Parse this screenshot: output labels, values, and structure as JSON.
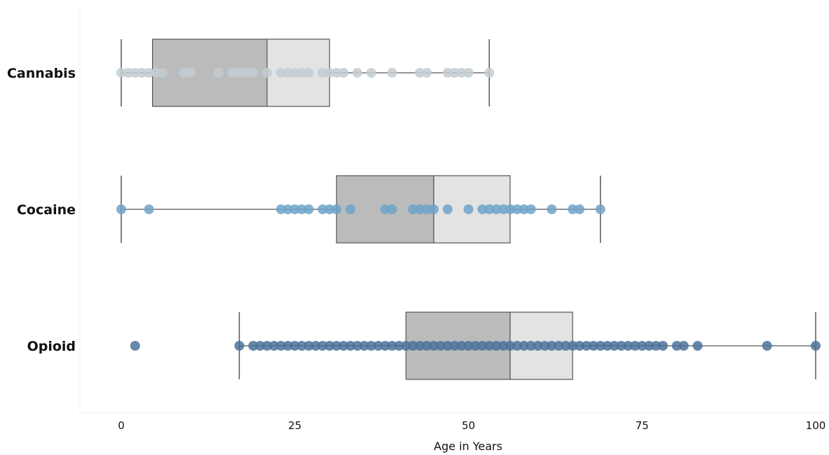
{
  "chart_data": {
    "type": "box",
    "xlabel": "Age in Years",
    "xlim": [
      0,
      100
    ],
    "x_ticks": [
      0,
      25,
      50,
      75,
      100
    ],
    "x_tick_labels": [
      "0",
      "25",
      "50",
      "75",
      "100"
    ],
    "grid": false,
    "orientation": "horizontal",
    "colors": {
      "box_lower": "#bbbbbb",
      "box_upper": "#e3e3e3",
      "box_edge": "#555555",
      "whisker": "#555555"
    },
    "series": [
      {
        "name": "Cannabis",
        "color": "#c3ccd2",
        "stats": {
          "min": 0,
          "q1": 4.5,
          "median": 21,
          "q3": 30,
          "max": 53
        },
        "points": [
          0,
          1,
          2,
          3,
          4,
          5,
          6,
          9,
          10,
          14,
          16,
          17,
          18,
          19,
          21,
          23,
          24,
          25,
          26,
          27,
          29,
          30,
          31,
          32,
          34,
          36,
          39,
          43,
          44,
          47,
          48,
          49,
          50,
          53
        ]
      },
      {
        "name": "Cocaine",
        "color": "#6fa3c9",
        "stats": {
          "min": 0,
          "q1": 31,
          "median": 45,
          "q3": 56,
          "max": 69
        },
        "points": [
          0,
          4,
          23,
          24,
          25,
          26,
          27,
          29,
          30,
          31,
          33,
          38,
          39,
          42,
          43,
          44,
          45,
          47,
          50,
          52,
          53,
          54,
          55,
          56,
          57,
          58,
          59,
          62,
          65,
          66,
          69
        ]
      },
      {
        "name": "Opioid",
        "color": "#4c729b",
        "stats": {
          "min": 17,
          "q1": 41,
          "median": 56,
          "q3": 65,
          "max": 100
        },
        "points": [
          2,
          17,
          19,
          20,
          21,
          22,
          23,
          24,
          25,
          26,
          27,
          28,
          29,
          30,
          31,
          32,
          33,
          34,
          35,
          36,
          37,
          38,
          39,
          40,
          41,
          42,
          43,
          44,
          45,
          46,
          47,
          48,
          49,
          50,
          51,
          52,
          53,
          54,
          55,
          56,
          57,
          58,
          59,
          60,
          61,
          62,
          63,
          64,
          65,
          66,
          67,
          68,
          69,
          70,
          71,
          72,
          73,
          74,
          75,
          76,
          77,
          78,
          80,
          81,
          83,
          93,
          100
        ]
      }
    ]
  }
}
